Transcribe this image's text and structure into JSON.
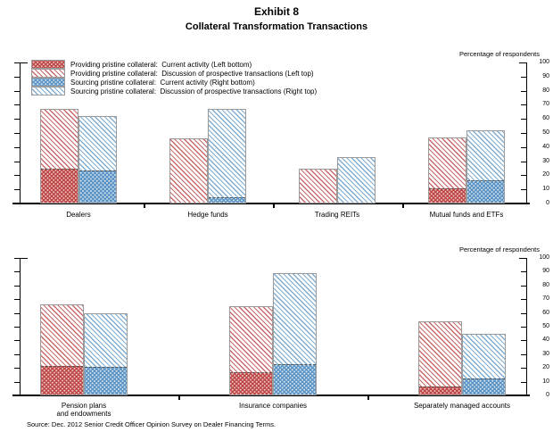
{
  "title": "Exhibit 8",
  "subtitle": "Collateral Transformation Transactions",
  "source_note": "Source: Dec. 2012 Senior Credit Officer Opinion Survey on Dealer Financing Terms.",
  "legend": {
    "items": [
      {
        "pattern": "red-dense",
        "label": "Providing pristine collateral:  Current activity (Left bottom)"
      },
      {
        "pattern": "red-diag",
        "label": "Providing pristine collateral:  Discussion of prospective transactions (Left top)"
      },
      {
        "pattern": "blue-dense",
        "label": "Sourcing pristine collateral:  Current activity (Right bottom)"
      },
      {
        "pattern": "blue-diag",
        "label": "Sourcing pristine collateral:  Discussion of prospective transactions (Right top)"
      }
    ]
  },
  "chart_data": [
    {
      "type": "bar",
      "stacked": true,
      "unit_label": "Percentage of respondents",
      "ylim": [
        0,
        100
      ],
      "ytick_step": 10,
      "grid": false,
      "legend_position": "top-left",
      "categories": [
        "Dealers",
        "Hedge funds",
        "Trading REITs",
        "Mutual funds and ETFs"
      ],
      "series": [
        {
          "name": "Providing pristine collateral: Current activity (Left bottom)",
          "pattern": "red-dense",
          "values": [
            24,
            0,
            0,
            10
          ]
        },
        {
          "name": "Providing pristine collateral: Discussion of prospective transactions (Left top)",
          "pattern": "red-diag",
          "values": [
            43,
            46,
            25,
            37
          ]
        },
        {
          "name": "Sourcing pristine collateral: Current activity (Right bottom)",
          "pattern": "blue-dense",
          "values": [
            23,
            4,
            0,
            16
          ]
        },
        {
          "name": "Sourcing pristine collateral: Discussion of prospective transactions (Right top)",
          "pattern": "blue-diag",
          "values": [
            39,
            63,
            33,
            36
          ]
        }
      ],
      "left_bar_totals": [
        67,
        46,
        25,
        47
      ],
      "right_bar_totals": [
        62,
        67,
        33,
        52
      ]
    },
    {
      "type": "bar",
      "stacked": true,
      "unit_label": "Percentage of respondents",
      "ylim": [
        0,
        100
      ],
      "ytick_step": 10,
      "grid": false,
      "categories": [
        "Pension plans\nand endowments",
        "Insurance companies",
        "Separately managed accounts"
      ],
      "series": [
        {
          "name": "Providing pristine collateral: Current activity (Left bottom)",
          "pattern": "red-dense",
          "values": [
            21,
            16,
            6
          ]
        },
        {
          "name": "Providing pristine collateral: Discussion of prospective transactions (Left top)",
          "pattern": "red-diag",
          "values": [
            45,
            49,
            48
          ]
        },
        {
          "name": "Sourcing pristine collateral: Current activity (Right bottom)",
          "pattern": "blue-dense",
          "values": [
            20,
            22,
            12
          ]
        },
        {
          "name": "Sourcing pristine collateral: Discussion of prospective transactions (Right top)",
          "pattern": "blue-diag",
          "values": [
            40,
            67,
            33
          ]
        }
      ],
      "left_bar_totals": [
        66,
        65,
        54
      ],
      "right_bar_totals": [
        60,
        89,
        45
      ]
    }
  ],
  "colors": {
    "providing_red": "#bc4745",
    "sourcing_blue": "#5b93c4",
    "axis": "#000000",
    "bar_border": "#9a9a9a"
  }
}
